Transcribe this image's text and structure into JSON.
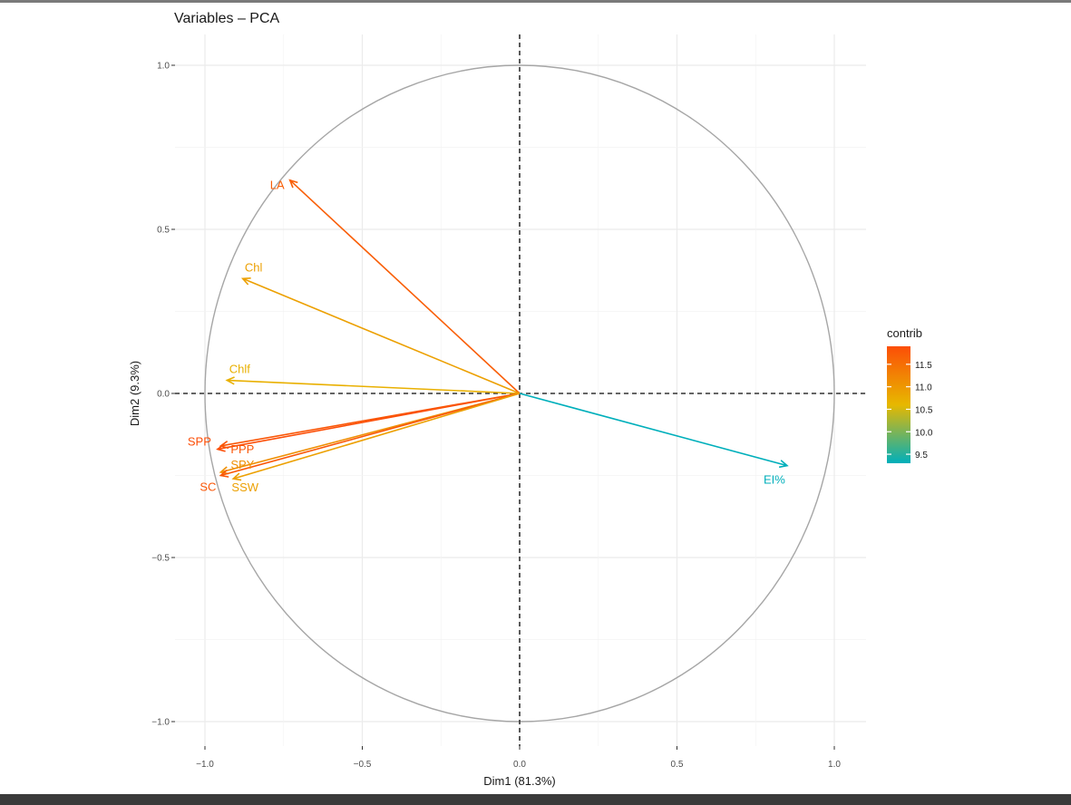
{
  "chart_data": {
    "type": "scatter",
    "subtype": "pca-variable-correlation-circle",
    "title": "Variables – PCA",
    "xlabel": "Dim1 (81.3%)",
    "ylabel": "Dim2 (9.3%)",
    "xlim": [
      -1.0,
      1.0
    ],
    "ylim": [
      -1.0,
      1.0
    ],
    "x_ticks": [
      -1.0,
      -0.5,
      0.0,
      0.5,
      1.0
    ],
    "x_tick_labels": [
      "-1.0",
      "-0.5",
      "0.0",
      "0.5",
      "1.0"
    ],
    "y_ticks": [
      1.0,
      0.5,
      0.0,
      -0.5,
      -1.0
    ],
    "y_tick_labels": [
      "1.0",
      "0.5",
      "0.0",
      "-0.5",
      "-1.0"
    ],
    "grid": true,
    "unit_circle": true,
    "legend": {
      "title": "contrib",
      "position": "right",
      "type": "colorbar",
      "range": [
        9.3,
        11.9
      ],
      "ticks": [
        9.5,
        10.0,
        10.5,
        11.0,
        11.5
      ],
      "tick_labels": [
        "9.5",
        "10.0",
        "10.5",
        "11.0",
        "11.5"
      ],
      "colors": [
        "#00AFBB",
        "#E7B800",
        "#FC4E07"
      ]
    },
    "variables": [
      {
        "name": "LA",
        "x": -0.73,
        "y": 0.65,
        "contrib": 11.7
      },
      {
        "name": "Chl",
        "x": -0.88,
        "y": 0.35,
        "contrib": 10.9
      },
      {
        "name": "Chlf",
        "x": -0.93,
        "y": 0.04,
        "contrib": 10.7
      },
      {
        "name": "SPP",
        "x": -0.96,
        "y": -0.17,
        "contrib": 11.9
      },
      {
        "name": "PPP",
        "x": -0.95,
        "y": -0.16,
        "contrib": 11.8
      },
      {
        "name": "SPY",
        "x": -0.95,
        "y": -0.24,
        "contrib": 11.1
      },
      {
        "name": "SC",
        "x": -0.95,
        "y": -0.25,
        "contrib": 11.8
      },
      {
        "name": "SSW",
        "x": -0.91,
        "y": -0.26,
        "contrib": 10.9
      },
      {
        "name": "EI%",
        "x": 0.85,
        "y": -0.22,
        "contrib": 9.3
      }
    ]
  }
}
